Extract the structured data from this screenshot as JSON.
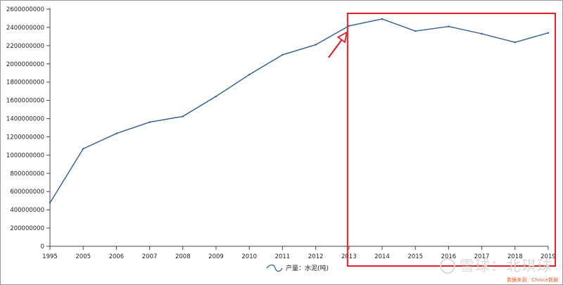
{
  "chart_data": {
    "type": "line",
    "title": "",
    "xlabel": "",
    "ylabel": "",
    "categories": [
      "1995",
      "2005",
      "2006",
      "2007",
      "2008",
      "2009",
      "2010",
      "2011",
      "2012",
      "2013",
      "2014",
      "2015",
      "2016",
      "2017",
      "2018",
      "2019"
    ],
    "series": [
      {
        "name": "产量：水泥(吨)",
        "values": [
          476000000,
          1069000000,
          1237000000,
          1361000000,
          1424000000,
          1644000000,
          1882000000,
          2099000000,
          2210000000,
          2416000000,
          2492000000,
          2359000000,
          2410000000,
          2330000000,
          2236000000,
          2340000000
        ],
        "color": "#2e5d8e"
      }
    ],
    "yticks": [
      "0",
      "200000000",
      "400000000",
      "600000000",
      "800000000",
      "1000000000",
      "1200000000",
      "1400000000",
      "1600000000",
      "1800000000",
      "2000000000",
      "2200000000",
      "2400000000",
      "2600000000"
    ],
    "ylim": [
      0,
      2600000000
    ],
    "grid": false,
    "legend": "bottom-center",
    "annotations": {
      "highlight_box": {
        "from": "2013",
        "to": "2019",
        "color": "#e0202a"
      },
      "arrow": {
        "points_to": "2013",
        "color": "#e0202a"
      }
    }
  },
  "watermark": {
    "text": "雪球：北琪球"
  },
  "source": {
    "text": "数据来源：Choice数据"
  }
}
